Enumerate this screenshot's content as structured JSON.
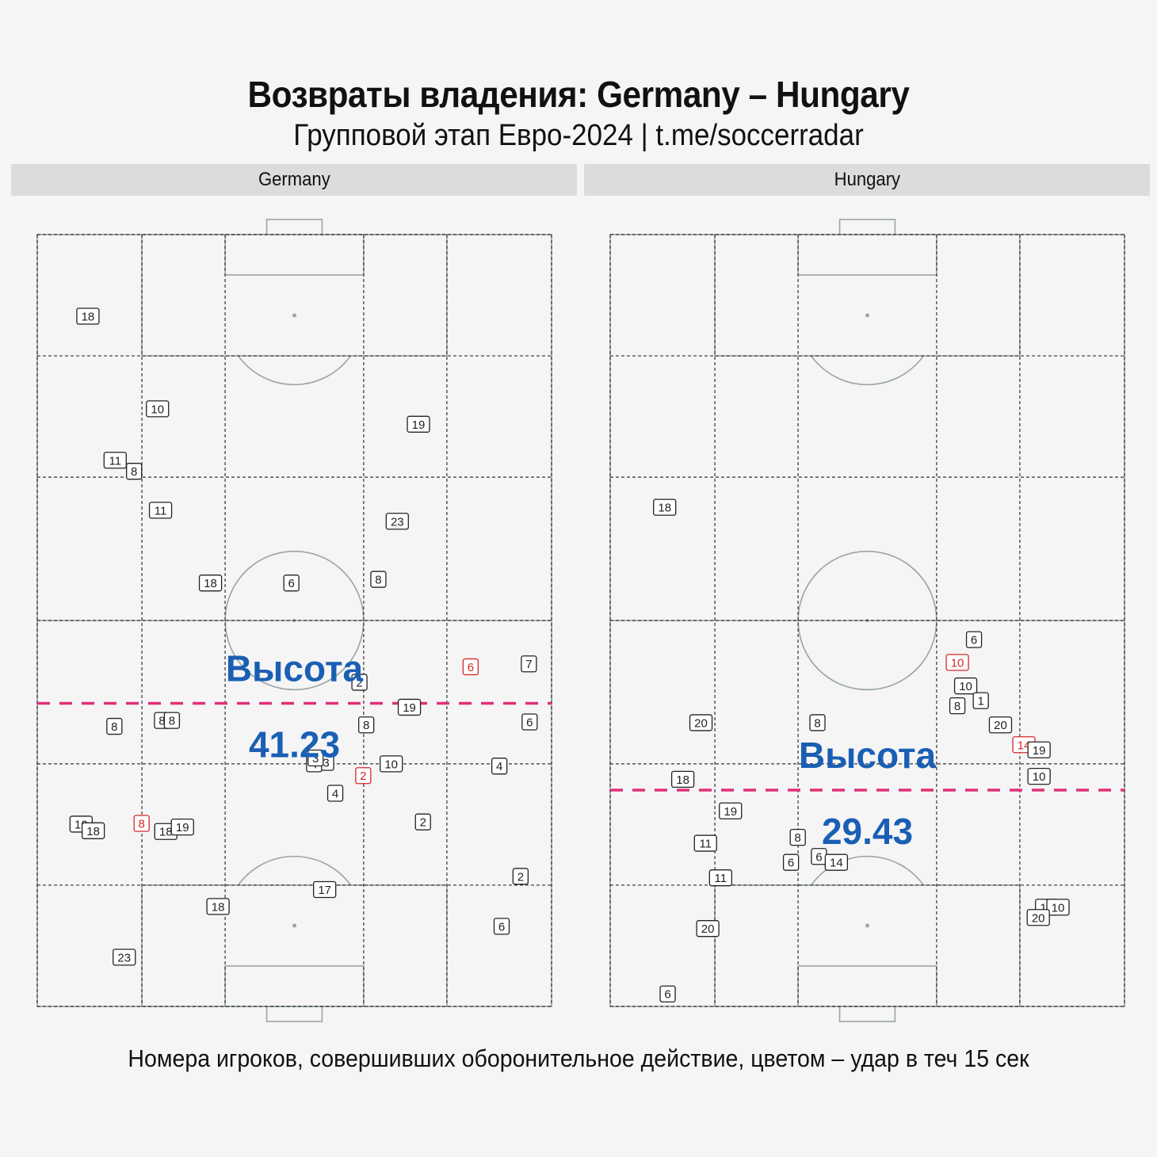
{
  "title": "Возвраты владения: Germany – Hungary",
  "subtitle": "Групповой этап Евро-2024 | t.me/soccerradar",
  "footer": "Номера игроков, совершивших оборонительное действие, цветом – удар в теч 15 сек",
  "colors": {
    "background": "#f5f5f5",
    "header": "#dcdcdc",
    "pitch_lines": "#9aa5a5",
    "height_line": "#e0307a",
    "height_label": "#1a5fb4",
    "shot_marker": "#d62728",
    "normal_marker": "#222222"
  },
  "chart_data": [
    {
      "type": "scatter",
      "team": "Germany",
      "height_label": "Высота",
      "height_value": "41.23",
      "height": 41.23,
      "pitch_length": 105,
      "pitch_width": 68,
      "points": [
        {
          "label": "18",
          "x": 93.9,
          "y": 6.7,
          "shot": false
        },
        {
          "label": "10",
          "x": 81.3,
          "y": 15.9,
          "shot": false
        },
        {
          "label": "11",
          "x": 74.3,
          "y": 10.3,
          "shot": false
        },
        {
          "label": "8",
          "x": 72.8,
          "y": 12.8,
          "shot": false
        },
        {
          "label": "11",
          "x": 67.5,
          "y": 16.3,
          "shot": false
        },
        {
          "label": "19",
          "x": 79.2,
          "y": 50.4,
          "shot": false
        },
        {
          "label": "23",
          "x": 66.0,
          "y": 47.6,
          "shot": false
        },
        {
          "label": "18",
          "x": 57.6,
          "y": 22.9,
          "shot": false
        },
        {
          "label": "6",
          "x": 57.6,
          "y": 33.6,
          "shot": false
        },
        {
          "label": "8",
          "x": 58.1,
          "y": 45.1,
          "shot": false
        },
        {
          "label": "6",
          "x": 46.2,
          "y": 57.3,
          "shot": true
        },
        {
          "label": "7",
          "x": 46.6,
          "y": 65.0,
          "shot": false
        },
        {
          "label": "2",
          "x": 44.1,
          "y": 42.6,
          "shot": false
        },
        {
          "label": "19",
          "x": 40.7,
          "y": 49.2,
          "shot": false
        },
        {
          "label": "8",
          "x": 38.1,
          "y": 10.2,
          "shot": false
        },
        {
          "label": "8",
          "x": 38.9,
          "y": 16.5,
          "shot": false
        },
        {
          "label": "8",
          "x": 38.9,
          "y": 17.8,
          "shot": false
        },
        {
          "label": "8",
          "x": 38.3,
          "y": 43.5,
          "shot": false
        },
        {
          "label": "6",
          "x": 38.7,
          "y": 65.1,
          "shot": false
        },
        {
          "label": "3",
          "x": 33.2,
          "y": 38.2,
          "shot": false
        },
        {
          "label": "4",
          "x": 33.0,
          "y": 36.6,
          "shot": false
        },
        {
          "label": "3",
          "x": 33.8,
          "y": 36.8,
          "shot": false
        },
        {
          "label": "10",
          "x": 33.0,
          "y": 46.8,
          "shot": false
        },
        {
          "label": "2",
          "x": 31.4,
          "y": 43.1,
          "shot": true
        },
        {
          "label": "4",
          "x": 32.7,
          "y": 61.1,
          "shot": false
        },
        {
          "label": "4",
          "x": 29.0,
          "y": 39.4,
          "shot": false
        },
        {
          "label": "10",
          "x": 24.8,
          "y": 5.8,
          "shot": false
        },
        {
          "label": "18",
          "x": 23.9,
          "y": 7.4,
          "shot": false
        },
        {
          "label": "8",
          "x": 24.9,
          "y": 13.8,
          "shot": true
        },
        {
          "label": "18",
          "x": 23.8,
          "y": 17.0,
          "shot": false
        },
        {
          "label": "19",
          "x": 24.4,
          "y": 19.2,
          "shot": false
        },
        {
          "label": "2",
          "x": 25.1,
          "y": 51.0,
          "shot": false
        },
        {
          "label": "2",
          "x": 17.7,
          "y": 63.9,
          "shot": false
        },
        {
          "label": "17",
          "x": 15.9,
          "y": 38.0,
          "shot": false
        },
        {
          "label": "18",
          "x": 13.6,
          "y": 23.9,
          "shot": false
        },
        {
          "label": "6",
          "x": 10.9,
          "y": 61.4,
          "shot": false
        },
        {
          "label": "23",
          "x": 6.7,
          "y": 11.5,
          "shot": false
        }
      ]
    },
    {
      "type": "scatter",
      "team": "Hungary",
      "height_label": "Высота",
      "height_value": "29.43",
      "height": 29.43,
      "pitch_length": 105,
      "pitch_width": 68,
      "points": [
        {
          "label": "18",
          "x": 67.9,
          "y": 7.2,
          "shot": false
        },
        {
          "label": "6",
          "x": 49.9,
          "y": 48.1,
          "shot": false
        },
        {
          "label": "10",
          "x": 46.8,
          "y": 45.9,
          "shot": true
        },
        {
          "label": "10",
          "x": 43.6,
          "y": 47.0,
          "shot": false
        },
        {
          "label": "1",
          "x": 41.6,
          "y": 49.0,
          "shot": false
        },
        {
          "label": "8",
          "x": 40.9,
          "y": 45.9,
          "shot": false
        },
        {
          "label": "20",
          "x": 38.3,
          "y": 51.6,
          "shot": false
        },
        {
          "label": "20",
          "x": 38.6,
          "y": 12.0,
          "shot": false
        },
        {
          "label": "8",
          "x": 38.6,
          "y": 27.4,
          "shot": false
        },
        {
          "label": "14",
          "x": 35.6,
          "y": 54.7,
          "shot": true
        },
        {
          "label": "19",
          "x": 34.9,
          "y": 56.7,
          "shot": false
        },
        {
          "label": "10",
          "x": 31.3,
          "y": 56.7,
          "shot": false
        },
        {
          "label": "18",
          "x": 30.9,
          "y": 9.6,
          "shot": false
        },
        {
          "label": "19",
          "x": 26.6,
          "y": 15.9,
          "shot": false
        },
        {
          "label": "11",
          "x": 22.2,
          "y": 12.6,
          "shot": false
        },
        {
          "label": "8",
          "x": 23.0,
          "y": 24.8,
          "shot": false
        },
        {
          "label": "6",
          "x": 19.6,
          "y": 23.9,
          "shot": false
        },
        {
          "label": "6",
          "x": 20.4,
          "y": 27.6,
          "shot": false
        },
        {
          "label": "14",
          "x": 19.6,
          "y": 29.9,
          "shot": false
        },
        {
          "label": "11",
          "x": 17.5,
          "y": 14.6,
          "shot": false
        },
        {
          "label": "10",
          "x": 13.5,
          "y": 57.7,
          "shot": false
        },
        {
          "label": "10",
          "x": 13.5,
          "y": 59.2,
          "shot": false
        },
        {
          "label": "20",
          "x": 12.1,
          "y": 56.6,
          "shot": false
        },
        {
          "label": "20",
          "x": 10.6,
          "y": 12.9,
          "shot": false
        },
        {
          "label": "6",
          "x": 1.7,
          "y": 7.6,
          "shot": false
        }
      ]
    }
  ]
}
